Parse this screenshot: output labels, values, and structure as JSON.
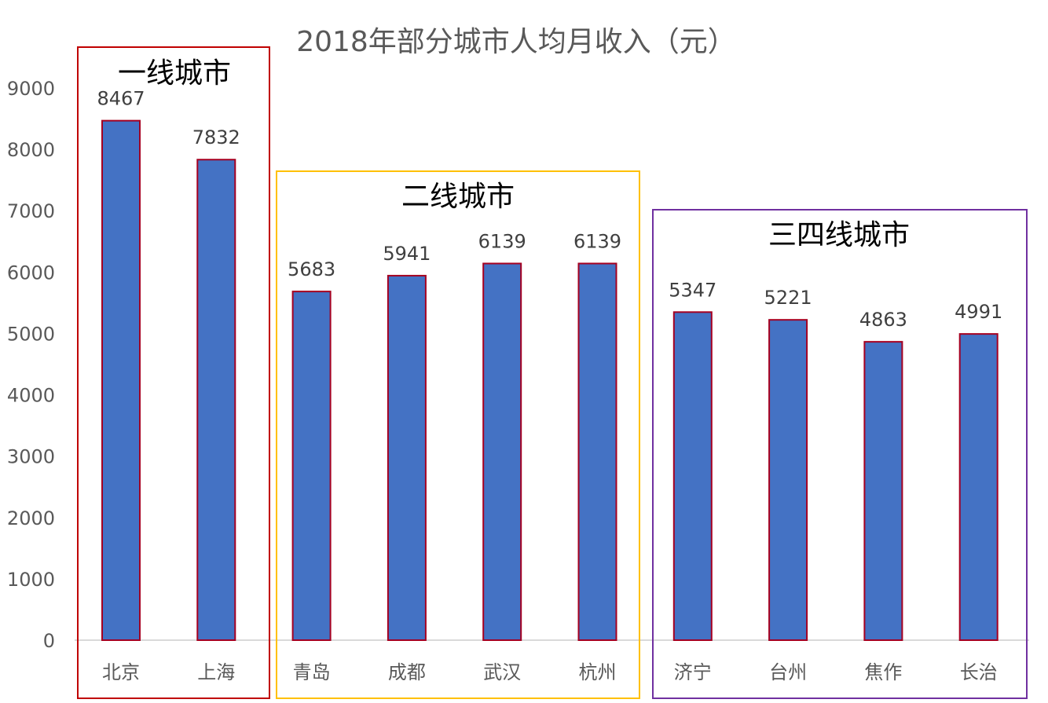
{
  "chart_data": {
    "type": "bar",
    "title": "2018年部分城市人均月收入（元）",
    "categories": [
      "北京",
      "上海",
      "青岛",
      "成都",
      "武汉",
      "杭州",
      "济宁",
      "台州",
      "焦作",
      "长治"
    ],
    "values": [
      8467,
      7832,
      5683,
      5941,
      6139,
      6139,
      5347,
      5221,
      4863,
      4991
    ],
    "ylim": [
      0,
      9000
    ],
    "yticks": [
      0,
      1000,
      2000,
      3000,
      4000,
      5000,
      6000,
      7000,
      8000,
      9000
    ],
    "grid": false,
    "data_labels": true,
    "colors": {
      "bar_fill": "#4472C4",
      "bar_border": "#A50021",
      "axis": "#D9D9D9",
      "text": "#595959"
    },
    "annotations": [
      {
        "label": "一线城市",
        "categories": [
          "北京",
          "上海"
        ],
        "color": "#C00000"
      },
      {
        "label": "二线城市",
        "categories": [
          "青岛",
          "成都",
          "武汉",
          "杭州"
        ],
        "color": "#FFC000"
      },
      {
        "label": "三四线城市",
        "categories": [
          "济宁",
          "台州",
          "焦作",
          "长治"
        ],
        "color": "#7030A0"
      }
    ]
  }
}
